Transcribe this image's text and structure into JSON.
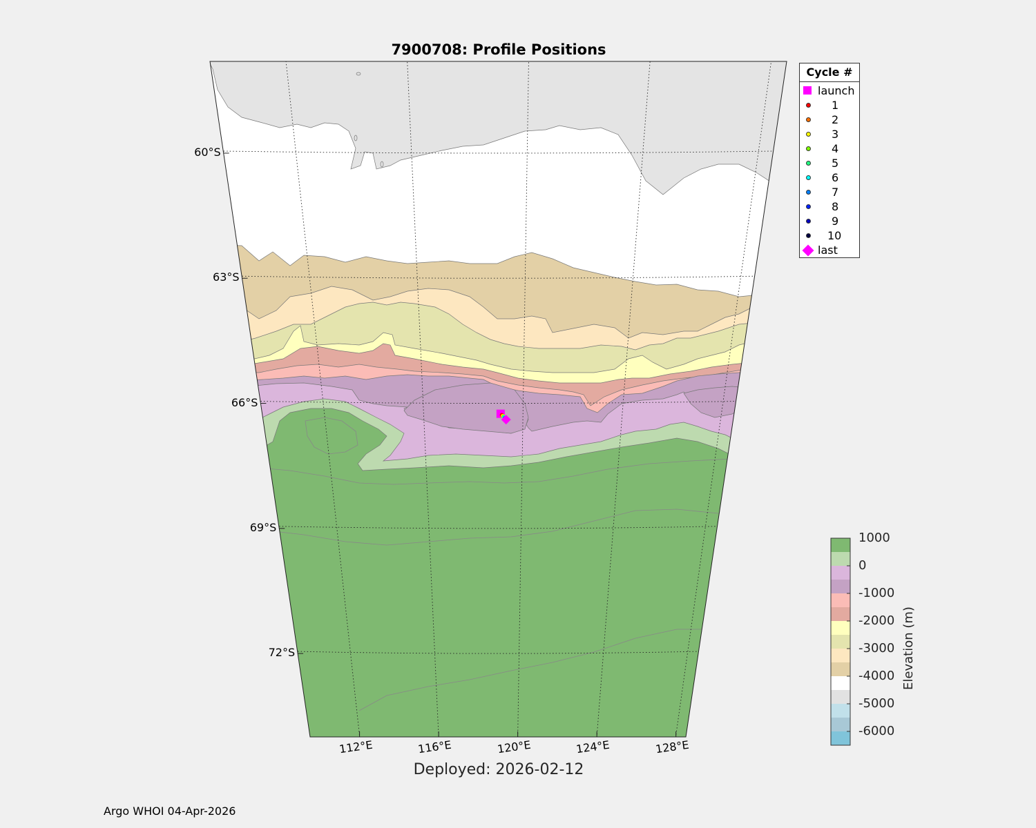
{
  "title": "7900708: Profile Positions",
  "xlabel": "Deployed: 2026-02-12",
  "footer": "Argo WHOI 04-Apr-2026",
  "map": {
    "lon_range": [
      109.5,
      128.5
    ],
    "lat_range": [
      -74.0,
      -57.8
    ],
    "lat_ticks": [
      {
        "value": -60,
        "label": "60°S"
      },
      {
        "value": -63,
        "label": "63°S"
      },
      {
        "value": -66,
        "label": "66°S"
      },
      {
        "value": -69,
        "label": "69°S"
      },
      {
        "value": -72,
        "label": "72°S"
      }
    ],
    "lon_ticks": [
      {
        "value": 112,
        "label": "112°E"
      },
      {
        "value": 116,
        "label": "116°E"
      },
      {
        "value": 120,
        "label": "120°E"
      },
      {
        "value": 124,
        "label": "124°E"
      },
      {
        "value": 128,
        "label": "128°E"
      }
    ],
    "grid": true,
    "bathymetry_contour_interval_m": 500
  },
  "legend": {
    "title": "Cycle #",
    "entries": [
      {
        "label": "launch",
        "color": "#ff00ff",
        "marker": "square"
      },
      {
        "label": "1",
        "color": "#ff0000",
        "marker": "circle"
      },
      {
        "label": "2",
        "color": "#ff7000",
        "marker": "circle"
      },
      {
        "label": "3",
        "color": "#ffff00",
        "marker": "circle"
      },
      {
        "label": "4",
        "color": "#80ff00",
        "marker": "circle"
      },
      {
        "label": "5",
        "color": "#20ff80",
        "marker": "circle"
      },
      {
        "label": "6",
        "color": "#00ffff",
        "marker": "circle"
      },
      {
        "label": "7",
        "color": "#0080ff",
        "marker": "circle"
      },
      {
        "label": "8",
        "color": "#0020ff",
        "marker": "circle"
      },
      {
        "label": "9",
        "color": "#0000c0",
        "marker": "circle"
      },
      {
        "label": "10",
        "color": "#000040",
        "marker": "circle"
      },
      {
        "label": "last",
        "color": "#ff00ff",
        "marker": "diamond"
      }
    ]
  },
  "colorbar": {
    "label": "Elevation (m)",
    "ticks": [
      "1000",
      "0",
      "-1000",
      "-2000",
      "-3000",
      "-4000",
      "-5000",
      "-6000"
    ],
    "bands": [
      "#7fb971",
      "#bddaaf",
      "#dbb6dc",
      "#c4a2c4",
      "#fbbcb6",
      "#e3aaa0",
      "#ffffbe",
      "#e4e4ae",
      "#fde7c0",
      "#e3d0a6",
      "#ffffff",
      "#e2e2e2",
      "#c1e0ea",
      "#a8c8d6",
      "#80c4da"
    ]
  },
  "chart_data": {
    "type": "scatter",
    "title": "7900708: Profile Positions",
    "xlabel": "Deployed: 2026-02-12",
    "ylabel": "",
    "xlim": [
      109.5,
      128.5
    ],
    "ylim": [
      -74.0,
      -57.8
    ],
    "series": [
      {
        "name": "launch",
        "x": [
          119.1
        ],
        "y": [
          -66.25
        ]
      },
      {
        "name": "1",
        "x": [
          119.15
        ],
        "y": [
          -66.28
        ]
      },
      {
        "name": "2",
        "x": [
          119.18
        ],
        "y": [
          -66.3
        ]
      },
      {
        "name": "3",
        "x": [
          119.2
        ],
        "y": [
          -66.31
        ]
      },
      {
        "name": "4",
        "x": [
          119.22
        ],
        "y": [
          -66.32
        ]
      },
      {
        "name": "5",
        "x": [
          119.24
        ],
        "y": [
          -66.33
        ]
      },
      {
        "name": "6",
        "x": [
          119.25
        ],
        "y": [
          -66.34
        ]
      },
      {
        "name": "7",
        "x": [
          119.27
        ],
        "y": [
          -66.35
        ]
      },
      {
        "name": "8",
        "x": [
          119.28
        ],
        "y": [
          -66.36
        ]
      },
      {
        "name": "9",
        "x": [
          119.3
        ],
        "y": [
          -66.37
        ]
      },
      {
        "name": "10",
        "x": [
          119.31
        ],
        "y": [
          -66.38
        ]
      },
      {
        "name": "last",
        "x": [
          119.32
        ],
        "y": [
          -66.39
        ]
      }
    ]
  }
}
